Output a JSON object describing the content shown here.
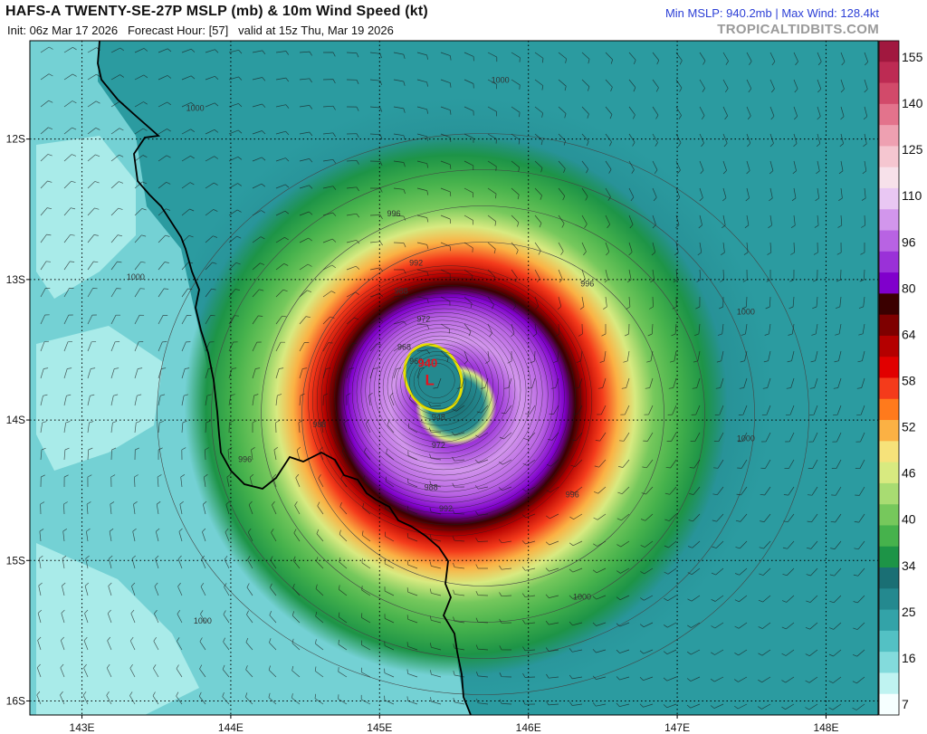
{
  "header": {
    "title": "HAFS-A TWENTY-SE-27P MSLP (mb) & 10m Wind Speed (kt)",
    "init": "Init: 06z Mar 17 2026",
    "forecast_hour": "Forecast Hour: [57]",
    "valid": "valid at 15z Thu, Mar 19 2026",
    "stats": "Min MSLP: 940.2mb | Max Wind: 128.4kt",
    "site": "TROPICALTIDBITS.COM"
  },
  "map": {
    "lon_range": [
      142.65,
      148.35
    ],
    "lat_range": [
      -16.1,
      -11.3
    ],
    "lon_ticks": [
      {
        "value": 143,
        "label": "143E"
      },
      {
        "value": 144,
        "label": "144E"
      },
      {
        "value": 145,
        "label": "145E"
      },
      {
        "value": 146,
        "label": "146E"
      },
      {
        "value": 147,
        "label": "147E"
      },
      {
        "value": 148,
        "label": "148E"
      }
    ],
    "lat_ticks": [
      {
        "value": -12,
        "label": "12S"
      },
      {
        "value": -13,
        "label": "13S"
      },
      {
        "value": -14,
        "label": "14S"
      },
      {
        "value": -15,
        "label": "15S"
      },
      {
        "value": -16,
        "label": "16S"
      }
    ],
    "storm_center": {
      "lon": 145.33,
      "lat": -13.7
    },
    "min_pressure_label": "940",
    "low_marker": "L",
    "isobar_labels": [
      {
        "text": "1000",
        "lon": 143.7,
        "lat": -11.8
      },
      {
        "text": "1000",
        "lon": 145.75,
        "lat": -11.6
      },
      {
        "text": "1000",
        "lon": 143.3,
        "lat": -13.0
      },
      {
        "text": "1000",
        "lon": 147.4,
        "lat": -13.25
      },
      {
        "text": "1000",
        "lon": 147.4,
        "lat": -14.15
      },
      {
        "text": "1000",
        "lon": 146.3,
        "lat": -15.28
      },
      {
        "text": "1000",
        "lon": 143.75,
        "lat": -15.45
      },
      {
        "text": "996",
        "lon": 145.05,
        "lat": -12.55
      },
      {
        "text": "996",
        "lon": 146.35,
        "lat": -13.05
      },
      {
        "text": "996",
        "lon": 144.05,
        "lat": -14.3
      },
      {
        "text": "996",
        "lon": 146.25,
        "lat": -14.55
      },
      {
        "text": "992",
        "lon": 145.2,
        "lat": -12.9
      },
      {
        "text": "992",
        "lon": 145.4,
        "lat": -14.65
      },
      {
        "text": "988",
        "lon": 145.1,
        "lat": -13.1
      },
      {
        "text": "988",
        "lon": 144.55,
        "lat": -14.05
      },
      {
        "text": "988",
        "lon": 145.3,
        "lat": -14.5
      },
      {
        "text": "972",
        "lon": 145.25,
        "lat": -13.3
      },
      {
        "text": "968",
        "lon": 145.12,
        "lat": -13.5
      },
      {
        "text": "960",
        "lon": 145.2,
        "lat": -13.6
      },
      {
        "text": "972",
        "lon": 145.35,
        "lat": -14.2
      },
      {
        "text": "948",
        "lon": 145.35,
        "lat": -14.0
      }
    ]
  },
  "colorbar": {
    "labels": [
      "155",
      "140",
      "125",
      "110",
      "96",
      "80",
      "64",
      "58",
      "52",
      "46",
      "40",
      "34",
      "25",
      "16",
      "7"
    ],
    "colors_top_to_bottom": [
      "#a1183f",
      "#bd2b53",
      "#d24a6a",
      "#e3738c",
      "#eea0b1",
      "#f5c6d0",
      "#f7e1ea",
      "#e9c7f3",
      "#d296ec",
      "#b863e3",
      "#9a31d8",
      "#8000cc",
      "#3a0000",
      "#7e0000",
      "#b40000",
      "#e10000",
      "#f43b1b",
      "#ff7a1c",
      "#fbb144",
      "#f6e27a",
      "#d8ea80",
      "#a8dc72",
      "#76c85c",
      "#46b24c",
      "#1d9447",
      "#1a6f74",
      "#24898f",
      "#33a3a8",
      "#53c1c4",
      "#83dbdc",
      "#bff3f1",
      "#f6ffff"
    ]
  },
  "chart_data": {
    "type": "heatmap",
    "title": "HAFS-A TWENTY-SE-27P MSLP (mb) & 10m Wind Speed (kt)",
    "variable": "10m Wind Speed (kt)",
    "contours": "MSLP (mb)",
    "min_mslp_mb": 940.2,
    "max_wind_kt": 128.4,
    "colorbar_levels_kt": [
      7,
      16,
      25,
      34,
      40,
      46,
      52,
      58,
      64,
      80,
      96,
      110,
      125,
      140,
      155
    ],
    "x_axis": {
      "labels": [
        "143E",
        "144E",
        "145E",
        "146E",
        "147E",
        "148E"
      ]
    },
    "y_axis": {
      "labels": [
        "12S",
        "13S",
        "14S",
        "15S",
        "16S"
      ]
    }
  }
}
